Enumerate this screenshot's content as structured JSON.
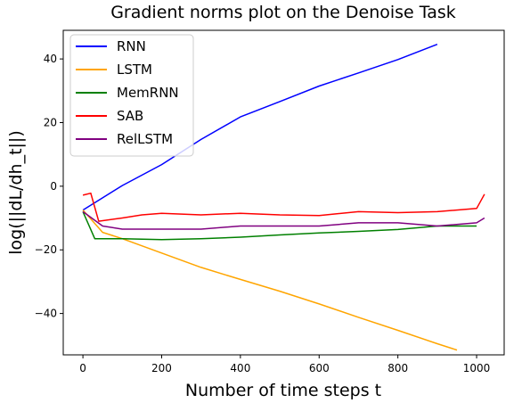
{
  "chart_data": {
    "type": "line",
    "title": "Gradient norms plot on the Denoise Task",
    "xlabel": "Number of time steps t",
    "ylabel": "log(||dL/dh_t||)",
    "xlim": [
      -50,
      1070
    ],
    "ylim": [
      -53,
      49
    ],
    "xticks": [
      0,
      200,
      400,
      600,
      800,
      1000
    ],
    "yticks": [
      -40,
      -20,
      0,
      20,
      40
    ],
    "grid": false,
    "legend_position": "top-left",
    "series": [
      {
        "name": "RNN",
        "color": "#0000ff",
        "points": [
          [
            0,
            -7.5
          ],
          [
            100,
            0.2
          ],
          [
            200,
            6.8
          ],
          [
            300,
            14.7
          ],
          [
            400,
            21.8
          ],
          [
            500,
            26.6
          ],
          [
            600,
            31.5
          ],
          [
            700,
            35.6
          ],
          [
            800,
            39.8
          ],
          [
            900,
            44.6
          ]
        ]
      },
      {
        "name": "LSTM",
        "color": "#ffa500",
        "points": [
          [
            0,
            -7.5
          ],
          [
            50,
            -14.5
          ],
          [
            100,
            -16.5
          ],
          [
            200,
            -21.0
          ],
          [
            300,
            -25.5
          ],
          [
            400,
            -29.3
          ],
          [
            500,
            -33.0
          ],
          [
            600,
            -37.0
          ],
          [
            700,
            -41.2
          ],
          [
            800,
            -45.3
          ],
          [
            900,
            -49.5
          ],
          [
            950,
            -51.5
          ]
        ]
      },
      {
        "name": "MemRNN",
        "color": "#008000",
        "points": [
          [
            0,
            -8.0
          ],
          [
            30,
            -16.5
          ],
          [
            100,
            -16.5
          ],
          [
            200,
            -16.8
          ],
          [
            300,
            -16.5
          ],
          [
            400,
            -16.0
          ],
          [
            500,
            -15.3
          ],
          [
            600,
            -14.7
          ],
          [
            700,
            -14.2
          ],
          [
            800,
            -13.6
          ],
          [
            900,
            -12.5
          ],
          [
            1000,
            -12.5
          ]
        ]
      },
      {
        "name": "SAB",
        "color": "#ff0000",
        "points": [
          [
            0,
            -2.8
          ],
          [
            20,
            -2.2
          ],
          [
            40,
            -11.0
          ],
          [
            100,
            -10.0
          ],
          [
            150,
            -9.0
          ],
          [
            200,
            -8.5
          ],
          [
            300,
            -9.0
          ],
          [
            400,
            -8.5
          ],
          [
            500,
            -9.0
          ],
          [
            600,
            -9.2
          ],
          [
            700,
            -8.0
          ],
          [
            800,
            -8.3
          ],
          [
            900,
            -8.0
          ],
          [
            1000,
            -7.0
          ],
          [
            1020,
            -2.5
          ]
        ]
      },
      {
        "name": "RelLSTM",
        "color": "#800080",
        "points": [
          [
            0,
            -8.0
          ],
          [
            50,
            -12.5
          ],
          [
            100,
            -13.5
          ],
          [
            200,
            -13.5
          ],
          [
            300,
            -13.5
          ],
          [
            400,
            -12.5
          ],
          [
            500,
            -12.5
          ],
          [
            600,
            -12.5
          ],
          [
            700,
            -11.5
          ],
          [
            800,
            -11.5
          ],
          [
            900,
            -12.5
          ],
          [
            1000,
            -11.5
          ],
          [
            1020,
            -10.0
          ]
        ]
      }
    ]
  }
}
